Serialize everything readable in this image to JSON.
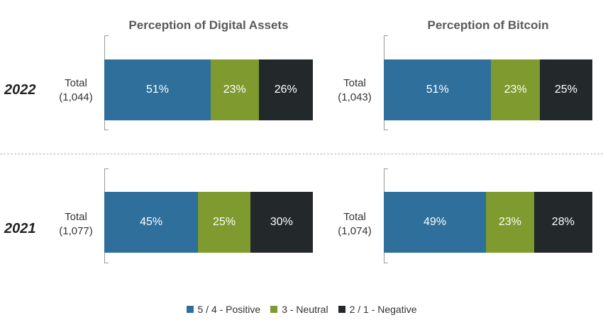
{
  "chart_data": {
    "type": "bar",
    "orientation": "horizontal",
    "stacked": true,
    "percent": true,
    "xlim": [
      0,
      100
    ],
    "legend_position": "bottom",
    "series": [
      {
        "name": "5 / 4 - Positive",
        "color": "#2f6f9b"
      },
      {
        "name": "3 - Neutral",
        "color": "#7f9a2e"
      },
      {
        "name": "2 / 1 - Negative",
        "color": "#23282b"
      }
    ],
    "panels": [
      {
        "title": "Perception of Digital Assets",
        "rows": [
          {
            "year": "2022",
            "label_line1": "Total",
            "label_line2": "(1,044)",
            "values": [
              51,
              23,
              26
            ]
          },
          {
            "year": "2021",
            "label_line1": "Total",
            "label_line2": "(1,077)",
            "values": [
              45,
              25,
              30
            ]
          }
        ]
      },
      {
        "title": "Perception of Bitcoin",
        "rows": [
          {
            "year": "2022",
            "label_line1": "Total",
            "label_line2": "(1,043)",
            "values": [
              51,
              23,
              25
            ]
          },
          {
            "year": "2021",
            "label_line1": "Total",
            "label_line2": "(1,074)",
            "values": [
              49,
              23,
              28
            ]
          }
        ]
      }
    ]
  }
}
